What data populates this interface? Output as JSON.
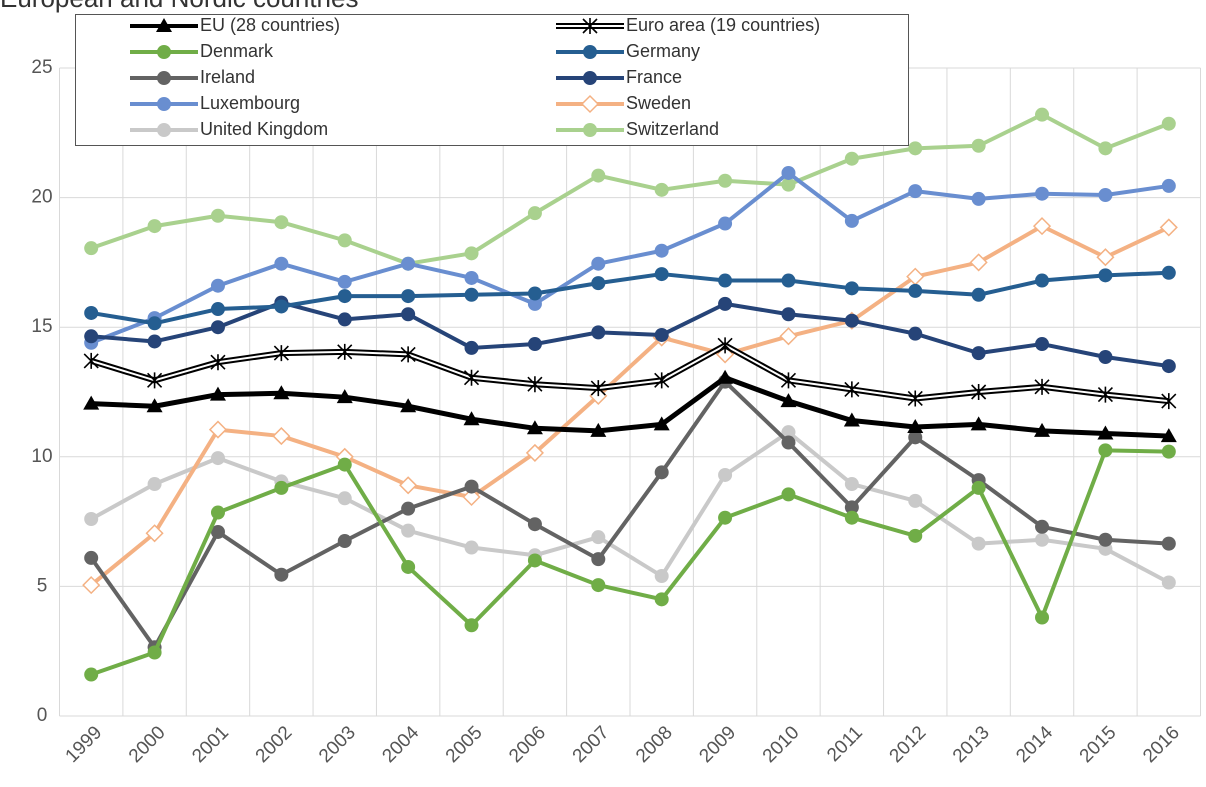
{
  "chart_data": {
    "type": "line",
    "title": "European and Nordic countries",
    "categories": [
      "1999",
      "2000",
      "2001",
      "2002",
      "2003",
      "2004",
      "2005",
      "2006",
      "2007",
      "2008",
      "2009",
      "2010",
      "2011",
      "2012",
      "2013",
      "2014",
      "2015",
      "2016"
    ],
    "ylim": [
      0,
      25
    ],
    "yticks": [
      0,
      5,
      10,
      15,
      20,
      25
    ],
    "grid": true,
    "series": [
      {
        "name": "EU (28 countries)",
        "color": "#000000",
        "marker": "triangle",
        "values": [
          12.05,
          11.95,
          12.4,
          12.45,
          12.3,
          11.95,
          11.45,
          11.1,
          11.0,
          11.25,
          13.05,
          12.15,
          11.4,
          11.15,
          11.25,
          11.0,
          10.9,
          10.8
        ]
      },
      {
        "name": "Euro area (19 countries)",
        "color": "#000000",
        "marker": "star",
        "line_style": "double",
        "values": [
          13.7,
          12.95,
          13.65,
          14.0,
          14.05,
          13.95,
          13.05,
          12.8,
          12.65,
          12.95,
          14.3,
          12.95,
          12.6,
          12.25,
          12.5,
          12.7,
          12.4,
          12.15
        ]
      },
      {
        "name": "Denmark",
        "color": "#70ad47",
        "marker": "circle",
        "values": [
          1.6,
          2.45,
          7.85,
          8.8,
          9.7,
          5.75,
          3.5,
          6.0,
          5.05,
          4.5,
          7.65,
          8.55,
          7.65,
          6.95,
          8.8,
          3.8,
          10.25,
          10.2
        ]
      },
      {
        "name": "Germany",
        "color": "#255e91",
        "marker": "circle",
        "values": [
          15.55,
          15.15,
          15.7,
          15.8,
          16.2,
          16.2,
          16.25,
          16.3,
          16.7,
          17.05,
          16.8,
          16.8,
          16.5,
          16.4,
          16.25,
          16.8,
          17.0,
          17.1
        ]
      },
      {
        "name": "Ireland",
        "color": "#636363",
        "marker": "circle",
        "values": [
          6.1,
          2.65,
          7.1,
          5.45,
          6.75,
          8.0,
          8.85,
          7.4,
          6.05,
          9.4,
          12.9,
          10.55,
          8.05,
          10.75,
          9.1,
          7.3,
          6.8,
          6.65
        ]
      },
      {
        "name": "France",
        "color": "#264478",
        "marker": "circle",
        "values": [
          14.65,
          14.45,
          15.0,
          15.95,
          15.3,
          15.5,
          14.2,
          14.35,
          14.8,
          14.7,
          15.9,
          15.5,
          15.25,
          14.75,
          14.0,
          14.35,
          13.85,
          13.5
        ]
      },
      {
        "name": "Luxembourg",
        "color": "#698ed0",
        "marker": "circle",
        "values": [
          14.4,
          15.35,
          16.6,
          17.45,
          16.75,
          17.45,
          16.9,
          15.9,
          17.45,
          17.95,
          19.0,
          20.95,
          19.1,
          20.25,
          19.95,
          20.15,
          20.1,
          20.45
        ]
      },
      {
        "name": "Sweden",
        "color": "#f4b183",
        "marker": "diamond",
        "values": [
          5.05,
          7.05,
          11.05,
          10.8,
          10.0,
          8.9,
          8.45,
          10.15,
          12.35,
          14.6,
          13.95,
          14.65,
          15.25,
          16.95,
          17.5,
          18.9,
          17.7,
          18.85
        ]
      },
      {
        "name": "United Kingdom",
        "color": "#c9c9c9",
        "marker": "circle",
        "values": [
          7.6,
          8.95,
          9.95,
          9.05,
          8.4,
          7.15,
          6.5,
          6.2,
          6.9,
          5.4,
          9.3,
          10.95,
          8.95,
          8.3,
          6.65,
          6.8,
          6.45,
          5.15
        ]
      },
      {
        "name": "Switzerland",
        "color": "#a9d18e",
        "marker": "circle",
        "values": [
          18.05,
          18.9,
          19.3,
          19.05,
          18.35,
          17.45,
          17.85,
          19.4,
          20.85,
          20.3,
          20.65,
          20.5,
          21.5,
          21.9,
          22.0,
          23.2,
          21.9,
          22.85
        ]
      }
    ]
  }
}
